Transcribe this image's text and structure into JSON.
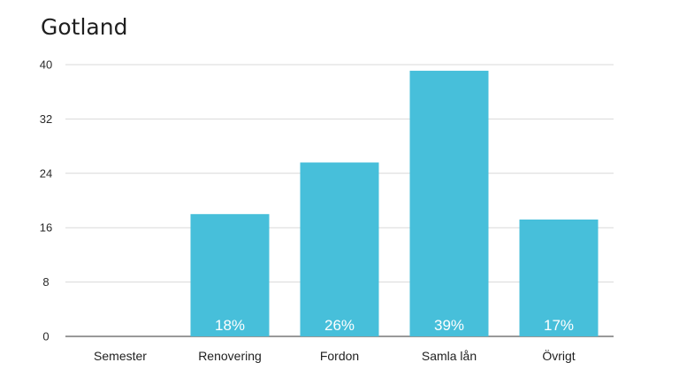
{
  "chart_data": {
    "type": "bar",
    "title": "Gotland",
    "categories": [
      "Semester",
      "Renovering",
      "Fordon",
      "Samla lån",
      "Övrigt"
    ],
    "values": [
      0,
      18,
      25.6,
      39.1,
      17.2
    ],
    "data_labels": [
      "",
      "18%",
      "26%",
      "39%",
      "17%"
    ],
    "yticks": [
      "0",
      "8",
      "16",
      "24",
      "32",
      "40"
    ],
    "ylim": [
      0,
      40
    ],
    "xlabel": "",
    "ylabel": "",
    "grid": true,
    "bar_color": "#47bfda",
    "grid_color": "#d9d9d9"
  }
}
